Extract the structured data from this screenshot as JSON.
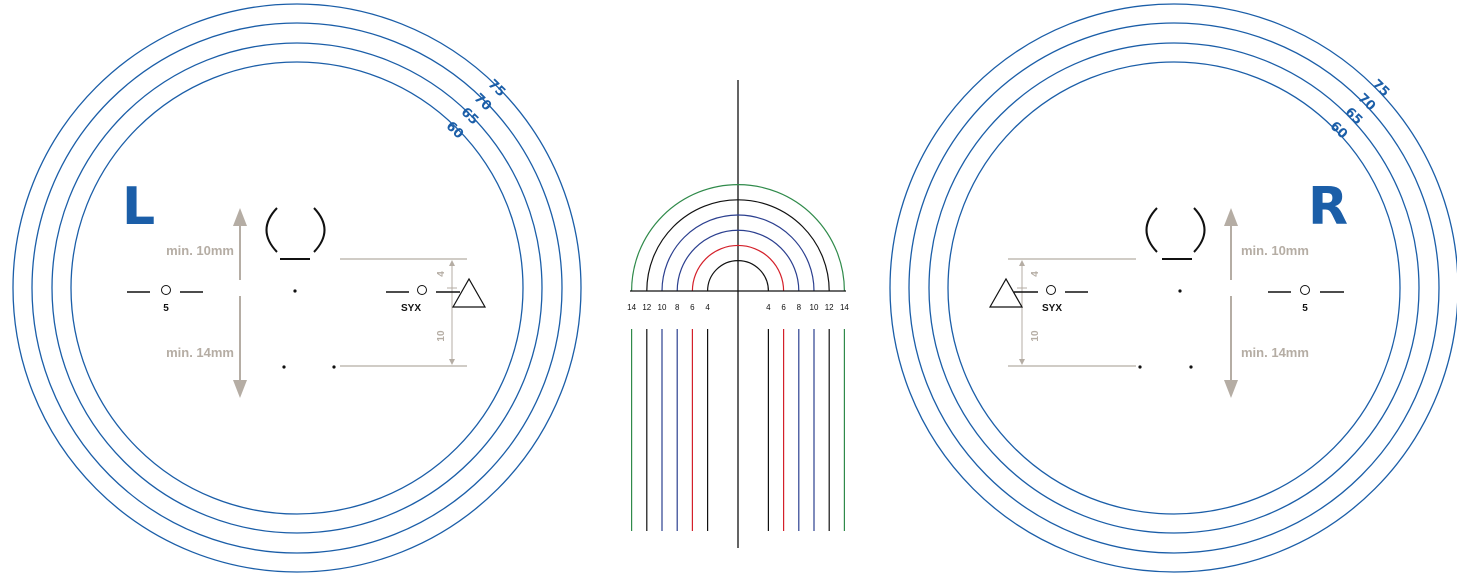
{
  "colors": {
    "ring_blue": "#1b5ea8",
    "dimension_grey": "#b5ada4",
    "red": "#d4202a",
    "green": "#2f8a4a",
    "navy": "#2b3f8f",
    "black": "#111111"
  },
  "left_eye": {
    "side_letter": "L",
    "ring_labels": [
      "60",
      "65",
      "70",
      "75"
    ],
    "dim_top": "min. 10mm",
    "dim_bottom": "min. 14mm",
    "marker_label": "5",
    "syx_label": "SYX",
    "dim_upper_value": "4",
    "dim_lower_value": "10"
  },
  "right_eye": {
    "side_letter": "R",
    "ring_labels": [
      "60",
      "65",
      "70",
      "75"
    ],
    "dim_top": "min. 10mm",
    "dim_bottom": "min. 14mm",
    "marker_label": "5",
    "syx_label": "SYX",
    "dim_upper_value": "4",
    "dim_lower_value": "10"
  },
  "center_gauge": {
    "left_scale": [
      "14",
      "12",
      "10",
      "8",
      "6",
      "4"
    ],
    "right_scale": [
      "4",
      "6",
      "8",
      "10",
      "12",
      "14"
    ],
    "scale_colors": {
      "4": "black",
      "6": "red",
      "8": "navy",
      "10": "navy",
      "12": "black",
      "14": "green"
    }
  }
}
